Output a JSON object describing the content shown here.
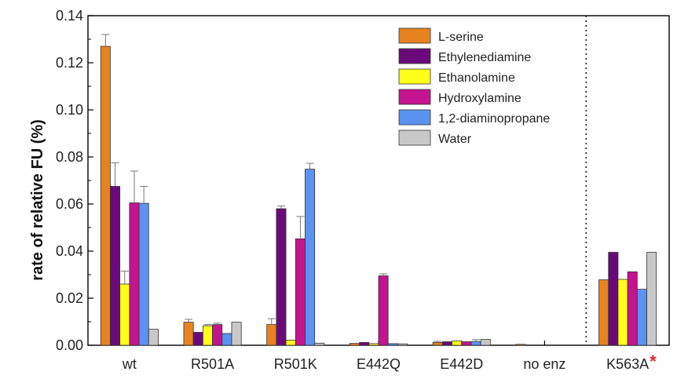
{
  "chart_data": {
    "type": "bar",
    "title": "",
    "xlabel": "",
    "ylabel": "rate of relative FU (%)",
    "ylim": [
      0,
      0.14
    ],
    "yticks": [
      "0.00",
      "0.02",
      "0.04",
      "0.06",
      "0.08",
      "0.10",
      "0.12",
      "0.14"
    ],
    "categories": [
      "wt",
      "R501A",
      "R501K",
      "E442Q",
      "E442D",
      "no enz",
      "K563A"
    ],
    "category_annotation": {
      "category": "K563A",
      "text": "*",
      "color": "#e8202a"
    },
    "separator": {
      "style": "dotted",
      "between": [
        "no enz",
        "K563A"
      ]
    },
    "legend_position": "top-right",
    "series": [
      {
        "name": "L-serine",
        "color": "#e8821f",
        "values": [
          0.127,
          0.0098,
          0.0088,
          0.0008,
          0.0012,
          0.0004,
          0.0278
        ],
        "errors": [
          0.005,
          0.0012,
          0.0025,
          null,
          0.0005,
          null,
          null
        ]
      },
      {
        "name": "Ethylenediamine",
        "color": "#6a0a7a",
        "values": [
          0.0675,
          0.0055,
          0.058,
          0.0012,
          0.0015,
          null,
          0.0395
        ],
        "errors": [
          0.01,
          null,
          0.0012,
          null,
          null,
          null,
          null
        ]
      },
      {
        "name": "Ethanolamine",
        "color": "#ffff1a",
        "values": [
          0.026,
          0.0083,
          0.0022,
          0.0007,
          0.0018,
          null,
          0.028
        ],
        "errors": [
          0.0055,
          0.0005,
          null,
          null,
          null,
          null,
          null
        ]
      },
      {
        "name": "Hydroxylamine",
        "color": "#c4148f",
        "values": [
          0.0605,
          0.0088,
          0.0452,
          0.0295,
          0.0015,
          null,
          0.0312
        ],
        "errors": [
          0.0135,
          0.0006,
          0.0095,
          0.0008,
          null,
          null,
          null
        ]
      },
      {
        "name": "1,2-diaminopropane",
        "color": "#5b93f2",
        "values": [
          0.0603,
          0.005,
          0.0748,
          0.0007,
          0.0016,
          null,
          0.0238
        ],
        "errors": [
          0.0072,
          null,
          0.0025,
          null,
          0.0008,
          null,
          null
        ]
      },
      {
        "name": "Water",
        "color": "#c8c8c8",
        "values": [
          0.0068,
          0.0098,
          0.0009,
          0.0006,
          0.0025,
          null,
          0.0395
        ],
        "errors": [
          null,
          null,
          null,
          null,
          null,
          null,
          null
        ]
      }
    ]
  }
}
